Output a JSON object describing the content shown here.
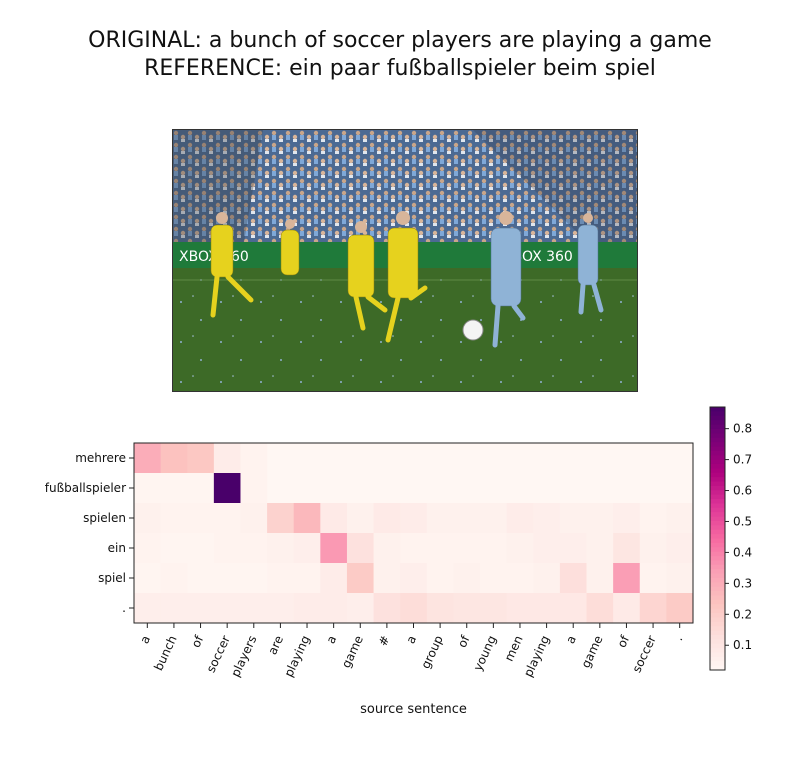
{
  "header": {
    "original_line": "ORIGINAL: a bunch of soccer players are playing a game",
    "reference_line": "REFERENCE: ein paar fußballspieler beim spiel"
  },
  "photo": {
    "banner_text_left": "XBOX 360",
    "banner_text_right": "XBOX 360",
    "colors": {
      "sky_crowd": "#5f7fa8",
      "banner": "#1f7a3a",
      "grass": "#3f6b2a",
      "yellow_kit": "#e6d21e",
      "blue_kit": "#8fb3d6"
    }
  },
  "chart_data": {
    "type": "heatmap",
    "title": "",
    "xlabel": "source sentence",
    "ylabel": "",
    "x_labels": [
      "a",
      "bunch",
      "of",
      "soccer",
      "players",
      "are",
      "playing",
      "a",
      "game",
      "#",
      "a",
      "group",
      "of",
      "young",
      "men",
      "playing",
      "a",
      "game",
      "of",
      "soccer",
      "."
    ],
    "y_labels": [
      "mehrere",
      "fußballspieler",
      "spielen",
      "ein",
      "spiel",
      "."
    ],
    "values": [
      [
        0.3,
        0.24,
        0.22,
        0.07,
        0.04,
        0.02,
        0.02,
        0.02,
        0.02,
        0.02,
        0.02,
        0.02,
        0.02,
        0.02,
        0.02,
        0.02,
        0.02,
        0.02,
        0.02,
        0.02,
        0.02
      ],
      [
        0.03,
        0.03,
        0.03,
        0.87,
        0.04,
        0.02,
        0.02,
        0.02,
        0.02,
        0.02,
        0.02,
        0.02,
        0.02,
        0.02,
        0.02,
        0.02,
        0.02,
        0.02,
        0.02,
        0.02,
        0.02
      ],
      [
        0.05,
        0.04,
        0.04,
        0.04,
        0.05,
        0.18,
        0.27,
        0.08,
        0.05,
        0.08,
        0.07,
        0.05,
        0.05,
        0.05,
        0.07,
        0.06,
        0.05,
        0.05,
        0.06,
        0.04,
        0.05
      ],
      [
        0.04,
        0.03,
        0.03,
        0.04,
        0.04,
        0.05,
        0.06,
        0.35,
        0.12,
        0.05,
        0.04,
        0.04,
        0.04,
        0.04,
        0.05,
        0.06,
        0.06,
        0.05,
        0.1,
        0.05,
        0.06
      ],
      [
        0.03,
        0.04,
        0.03,
        0.03,
        0.03,
        0.04,
        0.04,
        0.07,
        0.21,
        0.05,
        0.06,
        0.04,
        0.05,
        0.04,
        0.04,
        0.05,
        0.13,
        0.05,
        0.34,
        0.04,
        0.05
      ],
      [
        0.06,
        0.06,
        0.06,
        0.06,
        0.06,
        0.06,
        0.07,
        0.07,
        0.06,
        0.12,
        0.14,
        0.11,
        0.1,
        0.1,
        0.09,
        0.09,
        0.09,
        0.14,
        0.08,
        0.17,
        0.21
      ]
    ],
    "colorbar": {
      "min": 0.02,
      "max": 0.87,
      "ticks": [
        0.1,
        0.2,
        0.3,
        0.4,
        0.5,
        0.6,
        0.7,
        0.8
      ],
      "tick_labels": [
        "0.1",
        "0.2",
        "0.3",
        "0.4",
        "0.5",
        "0.6",
        "0.7",
        "0.8"
      ],
      "colormap": [
        "#fff7f3",
        "#fde0dd",
        "#fcc5c0",
        "#fa9fb5",
        "#f768a1",
        "#dd3497",
        "#ae017e",
        "#7a0177",
        "#49006a"
      ]
    }
  }
}
